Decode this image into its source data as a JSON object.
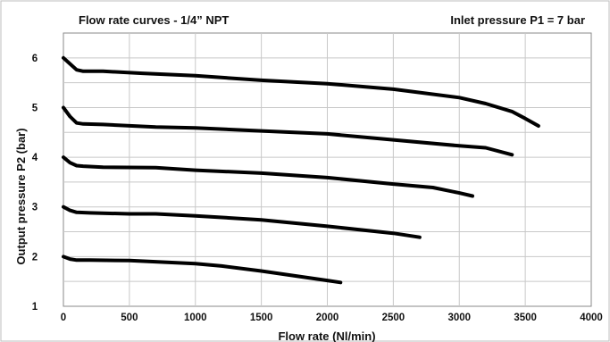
{
  "chart_data": {
    "type": "line",
    "title": "Flow rate curves - 1/4” NPT",
    "annotation": "Inlet pressure P1 = 7 bar",
    "xlabel": "Flow rate (Nl/min)",
    "ylabel": "Output pressure P2 (bar)",
    "xlim": [
      0,
      4000
    ],
    "ylim": [
      1,
      6.5
    ],
    "xticks": [
      "0",
      "500",
      "1000",
      "1500",
      "2000",
      "2500",
      "3000",
      "3500",
      "4000"
    ],
    "yticks": [
      "1",
      "2",
      "3",
      "4",
      "5",
      "6"
    ],
    "grid": true,
    "series": [
      {
        "x": [
          0,
          50,
          100,
          150,
          300,
          600,
          1000,
          1500,
          2000,
          2500,
          3000,
          3200,
          3400,
          3500,
          3600
        ],
        "y": [
          6.0,
          5.88,
          5.76,
          5.73,
          5.73,
          5.69,
          5.64,
          5.55,
          5.48,
          5.37,
          5.2,
          5.08,
          4.92,
          4.78,
          4.63
        ]
      },
      {
        "x": [
          0,
          50,
          100,
          150,
          300,
          700,
          1000,
          1500,
          2000,
          2500,
          3000,
          3200,
          3400
        ],
        "y": [
          5.0,
          4.82,
          4.69,
          4.67,
          4.66,
          4.61,
          4.59,
          4.53,
          4.47,
          4.35,
          4.23,
          4.19,
          4.05
        ]
      },
      {
        "x": [
          0,
          50,
          100,
          150,
          300,
          700,
          1000,
          1500,
          2000,
          2500,
          2800,
          3000,
          3100
        ],
        "y": [
          4.0,
          3.89,
          3.83,
          3.82,
          3.8,
          3.79,
          3.74,
          3.68,
          3.59,
          3.46,
          3.39,
          3.28,
          3.22
        ]
      },
      {
        "x": [
          0,
          50,
          100,
          200,
          500,
          700,
          1000,
          1500,
          2000,
          2500,
          2700
        ],
        "y": [
          3.0,
          2.93,
          2.89,
          2.88,
          2.86,
          2.86,
          2.82,
          2.74,
          2.61,
          2.47,
          2.39
        ]
      },
      {
        "x": [
          0,
          50,
          100,
          200,
          500,
          1000,
          1200,
          1500,
          2000,
          2100
        ],
        "y": [
          2.0,
          1.95,
          1.93,
          1.93,
          1.92,
          1.86,
          1.81,
          1.71,
          1.52,
          1.48
        ]
      }
    ]
  }
}
